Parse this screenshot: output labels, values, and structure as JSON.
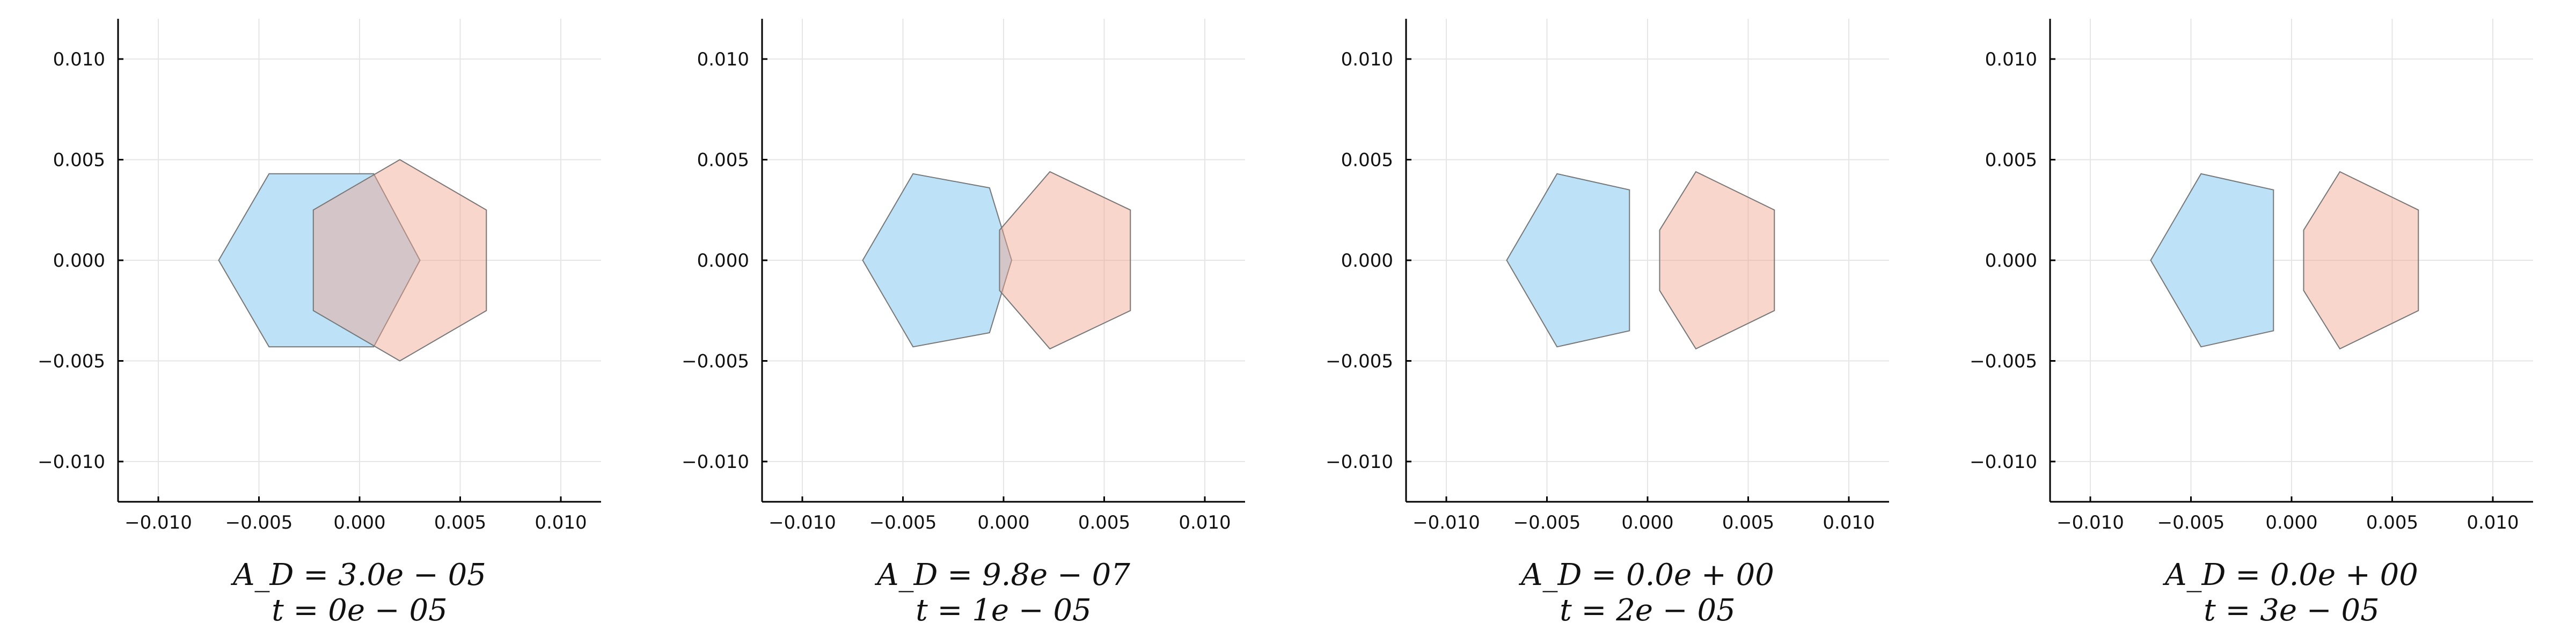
{
  "chart_data": [
    {
      "type": "polygon",
      "caption_lines": [
        "A_D = 3.0e − 05",
        "t = 0e − 05"
      ],
      "xlim": [
        -0.012,
        0.012
      ],
      "ylim": [
        -0.012,
        0.012
      ],
      "xticks": [
        -0.01,
        -0.005,
        0.0,
        0.005,
        0.01
      ],
      "yticks": [
        -0.01,
        -0.005,
        0.0,
        0.005,
        0.01
      ],
      "xtick_labels": [
        "−0.010",
        "−0.005",
        "0.000",
        "0.005",
        "0.010"
      ],
      "ytick_labels": [
        "−0.010",
        "−0.005",
        "0.000",
        "0.005",
        "0.010"
      ],
      "grid": true,
      "shapes": [
        {
          "color": "#bde2f7",
          "opacity": 1.0,
          "points": [
            [
              -0.007,
              0.0
            ],
            [
              -0.0045,
              0.0043
            ],
            [
              0.0007,
              0.0043
            ],
            [
              0.003,
              0.0
            ],
            [
              0.0007,
              -0.0043
            ],
            [
              -0.0045,
              -0.0043
            ]
          ]
        },
        {
          "color": "#f0a58e",
          "opacity": 0.45,
          "points": [
            [
              -0.0023,
              0.0025
            ],
            [
              0.002,
              0.005
            ],
            [
              0.0063,
              0.0025
            ],
            [
              0.0063,
              -0.0025
            ],
            [
              0.002,
              -0.005
            ],
            [
              -0.0023,
              -0.0025
            ]
          ]
        }
      ]
    },
    {
      "type": "polygon",
      "caption_lines": [
        "A_D = 9.8e − 07",
        "t = 1e − 05"
      ],
      "xlim": [
        -0.012,
        0.012
      ],
      "ylim": [
        -0.012,
        0.012
      ],
      "xticks": [
        -0.01,
        -0.005,
        0.0,
        0.005,
        0.01
      ],
      "yticks": [
        -0.01,
        -0.005,
        0.0,
        0.005,
        0.01
      ],
      "xtick_labels": [
        "−0.010",
        "−0.005",
        "0.000",
        "0.005",
        "0.010"
      ],
      "ytick_labels": [
        "−0.010",
        "−0.005",
        "0.000",
        "0.005",
        "0.010"
      ],
      "grid": true,
      "shapes": [
        {
          "color": "#bde2f7",
          "opacity": 1.0,
          "points": [
            [
              -0.007,
              0.0
            ],
            [
              -0.0045,
              0.0043
            ],
            [
              -0.0007,
              0.0036
            ],
            [
              0.0004,
              0.0
            ],
            [
              -0.0007,
              -0.0036
            ],
            [
              -0.0045,
              -0.0043
            ]
          ]
        },
        {
          "color": "#f0a58e",
          "opacity": 0.45,
          "points": [
            [
              -0.0002,
              0.0015
            ],
            [
              0.0023,
              0.0044
            ],
            [
              0.0063,
              0.0025
            ],
            [
              0.0063,
              -0.0025
            ],
            [
              0.0023,
              -0.0044
            ],
            [
              -0.0002,
              -0.0015
            ]
          ]
        }
      ]
    },
    {
      "type": "polygon",
      "caption_lines": [
        "A_D = 0.0e + 00",
        "t = 2e − 05"
      ],
      "xlim": [
        -0.012,
        0.012
      ],
      "ylim": [
        -0.012,
        0.012
      ],
      "xticks": [
        -0.01,
        -0.005,
        0.0,
        0.005,
        0.01
      ],
      "yticks": [
        -0.01,
        -0.005,
        0.0,
        0.005,
        0.01
      ],
      "xtick_labels": [
        "−0.010",
        "−0.005",
        "0.000",
        "0.005",
        "0.010"
      ],
      "ytick_labels": [
        "−0.010",
        "−0.005",
        "0.000",
        "0.005",
        "0.010"
      ],
      "grid": true,
      "shapes": [
        {
          "color": "#bde2f7",
          "opacity": 1.0,
          "points": [
            [
              -0.007,
              0.0
            ],
            [
              -0.0045,
              0.0043
            ],
            [
              -0.0009,
              0.0035
            ],
            [
              -0.0009,
              -0.0035
            ],
            [
              -0.0045,
              -0.0043
            ]
          ]
        },
        {
          "color": "#f0a58e",
          "opacity": 0.45,
          "points": [
            [
              0.0006,
              0.0015
            ],
            [
              0.0024,
              0.0044
            ],
            [
              0.0063,
              0.0025
            ],
            [
              0.0063,
              -0.0025
            ],
            [
              0.0024,
              -0.0044
            ],
            [
              0.0006,
              -0.0015
            ]
          ]
        }
      ]
    },
    {
      "type": "polygon",
      "caption_lines": [
        "A_D = 0.0e + 00",
        "t = 3e − 05"
      ],
      "xlim": [
        -0.012,
        0.012
      ],
      "ylim": [
        -0.012,
        0.012
      ],
      "xticks": [
        -0.01,
        -0.005,
        0.0,
        0.005,
        0.01
      ],
      "yticks": [
        -0.01,
        -0.005,
        0.0,
        0.005,
        0.01
      ],
      "xtick_labels": [
        "−0.010",
        "−0.005",
        "0.000",
        "0.005",
        "0.010"
      ],
      "ytick_labels": [
        "−0.010",
        "−0.005",
        "0.000",
        "0.005",
        "0.010"
      ],
      "grid": true,
      "shapes": [
        {
          "color": "#bde2f7",
          "opacity": 1.0,
          "points": [
            [
              -0.007,
              0.0
            ],
            [
              -0.0045,
              0.0043
            ],
            [
              -0.0009,
              0.0035
            ],
            [
              -0.0009,
              -0.0035
            ],
            [
              -0.0045,
              -0.0043
            ]
          ]
        },
        {
          "color": "#f0a58e",
          "opacity": 0.45,
          "points": [
            [
              0.0006,
              0.0015
            ],
            [
              0.0024,
              0.0044
            ],
            [
              0.0063,
              0.0025
            ],
            [
              0.0063,
              -0.0025
            ],
            [
              0.0024,
              -0.0044
            ],
            [
              0.0006,
              -0.0015
            ]
          ]
        }
      ]
    }
  ],
  "colors": {
    "shape_stroke": "#777777"
  }
}
